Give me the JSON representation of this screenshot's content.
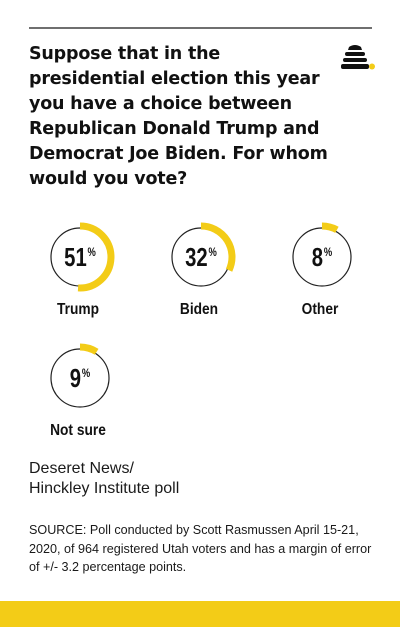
{
  "question": "Suppose that in the presidential election this year you have a choice between Republican Donald Trump and Democrat Joe Biden. For whom would you vote?",
  "source": {
    "line1": "Deseret News/",
    "line2": "Hinckley Institute poll"
  },
  "note": "SOURCE: Poll conducted by Scott Rasmussen April 15-21, 2020, of 964 registered Utah voters and has a margin of error of +/- 3.2 percentage points.",
  "colors": {
    "accent": "#f3cc17",
    "ring": "#222222",
    "rule": "#6f6f6f"
  },
  "icons": [
    "beehive-icon"
  ],
  "chart_data": {
    "type": "pie",
    "unit": "%",
    "categories": [
      "Trump",
      "Biden",
      "Other",
      "Not sure"
    ],
    "values": [
      51,
      32,
      8,
      9
    ]
  }
}
